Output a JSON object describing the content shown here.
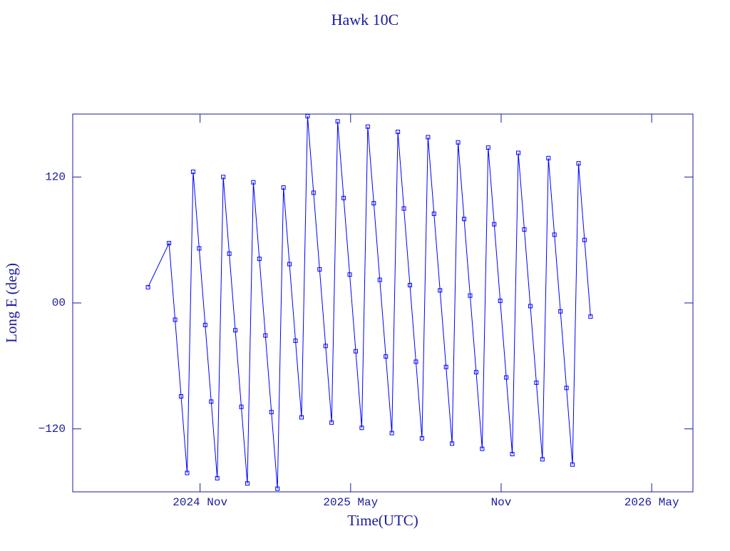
{
  "chart_data": {
    "type": "line",
    "title": "Hawk 10C",
    "xlabel": "Time(UTC)",
    "ylabel": "Long E (deg)",
    "x": [
      2024.66,
      2024.73,
      2024.75,
      2024.77,
      2024.79,
      2024.81,
      2024.83,
      2024.85,
      2024.87,
      2024.89,
      2024.91,
      2024.93,
      2024.95,
      2024.97,
      2024.99,
      2025.01,
      2025.03,
      2025.05,
      2025.07,
      2025.09,
      2025.11,
      2025.13,
      2025.15,
      2025.17,
      2025.19,
      2025.21,
      2025.23,
      2025.25,
      2025.27,
      2025.29,
      2025.31,
      2025.33,
      2025.35,
      2025.37,
      2025.39,
      2025.41,
      2025.43,
      2025.45,
      2025.47,
      2025.49,
      2025.51,
      2025.53,
      2025.55,
      2025.57,
      2025.59,
      2025.61,
      2025.63,
      2025.65,
      2025.67,
      2025.69,
      2025.71,
      2025.73,
      2025.75,
      2025.77,
      2025.79,
      2025.81,
      2025.83,
      2025.85,
      2025.87,
      2025.89,
      2025.91,
      2025.93,
      2025.95,
      2025.97,
      2025.99,
      2026.01,
      2026.03,
      2026.05,
      2026.07,
      2026.09,
      2026.11,
      2026.13
    ],
    "series": [
      {
        "name": "Hawk 10C",
        "color": "#0000ff",
        "values": [
          15,
          57,
          -16,
          -89,
          -162,
          125,
          52,
          -21,
          -94,
          -167,
          120,
          47,
          -26,
          -99,
          -172,
          115,
          42,
          -31,
          -104,
          -177,
          110,
          37,
          -36,
          -109,
          178,
          105,
          32,
          -41,
          -114,
          173,
          100,
          27,
          -46,
          -119,
          168,
          95,
          22,
          -51,
          -124,
          163,
          90,
          17,
          -56,
          -129,
          158,
          85,
          12,
          -61,
          -134,
          153,
          80,
          7,
          -66,
          -139,
          148,
          75,
          2,
          -71,
          -144,
          143,
          70,
          -3,
          -76,
          -149,
          138,
          65,
          -8,
          -81,
          -154,
          133,
          60,
          -13
        ]
      }
    ],
    "xlim": [
      2024.41,
      2026.47
    ],
    "xticks": [
      {
        "value": 2024.833,
        "label": "2024 Nov"
      },
      {
        "value": 2025.333,
        "label": "2025 May"
      },
      {
        "value": 2025.833,
        "label": "Nov"
      },
      {
        "value": 2026.333,
        "label": "2026 May"
      }
    ],
    "ylim": [
      -180,
      180
    ],
    "yticks": [
      {
        "value": -120,
        "label": "−120"
      },
      {
        "value": 0,
        "label": "00"
      },
      120
    ],
    "axis_color": "#1a1a9e"
  }
}
